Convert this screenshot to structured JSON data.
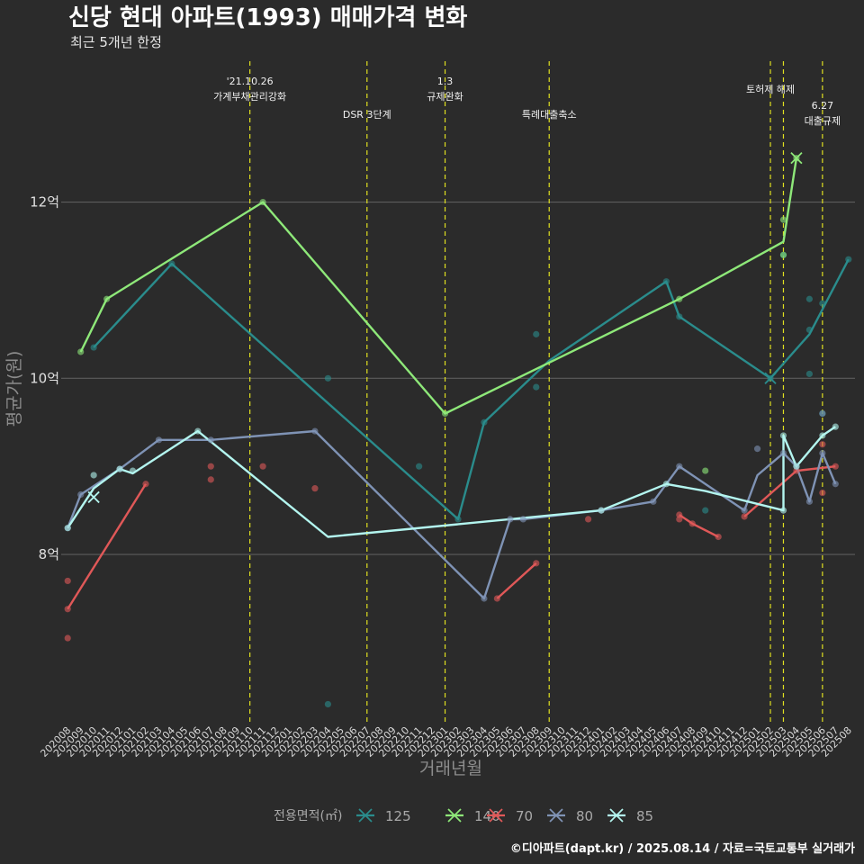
{
  "chart_data": {
    "type": "line",
    "title": "신당 현대 아파트(1993) 매매가격 변화",
    "subtitle": "최근 5개년 한정",
    "xlabel": "거래년월",
    "ylabel": "평균가(원)",
    "caption": "©디아파트(dapt.kr) / 2025.08.14 / 자료=국토교통부 실거래가",
    "legend_title": "전용면적(㎡)",
    "legend_position": "bottom",
    "grid": true,
    "ylim": [
      6.1,
      13.6
    ],
    "y_ticks": [
      {
        "value": 8,
        "label": "8억"
      },
      {
        "value": 10,
        "label": "10억"
      },
      {
        "value": 12,
        "label": "12억"
      }
    ],
    "x_range": [
      "202008",
      "202508"
    ],
    "x_ticks": [
      "202008",
      "202009",
      "202010",
      "202011",
      "202012",
      "202101",
      "202102",
      "202103",
      "202104",
      "202105",
      "202106",
      "202107",
      "202108",
      "202109",
      "202110",
      "202111",
      "202112",
      "202201",
      "202202",
      "202203",
      "202204",
      "202205",
      "202206",
      "202207",
      "202208",
      "202209",
      "202210",
      "202211",
      "202212",
      "202301",
      "202302",
      "202303",
      "202304",
      "202305",
      "202306",
      "202307",
      "202308",
      "202309",
      "202310",
      "202311",
      "202312",
      "202401",
      "202402",
      "202403",
      "202404",
      "202405",
      "202406",
      "202407",
      "202408",
      "202409",
      "202410",
      "202411",
      "202412",
      "202501",
      "202502",
      "202503",
      "202504",
      "202505",
      "202506",
      "202507",
      "202508"
    ],
    "events": [
      {
        "x": "202110",
        "lines": [
          "'21.10.26",
          "가계부채관리강화"
        ]
      },
      {
        "x": "202207",
        "lines": [
          "DSR 3단계"
        ]
      },
      {
        "x": "202301",
        "lines": [
          "1.3",
          "규제완화"
        ]
      },
      {
        "x": "202309",
        "lines": [
          "특례대출축소"
        ]
      },
      {
        "x": "202502",
        "lines": [
          "토허제 해제"
        ]
      },
      {
        "x": "202503",
        "lines": []
      },
      {
        "x": "202506",
        "lines": [
          "6.27",
          "대출규제"
        ]
      }
    ],
    "series": [
      {
        "name": "125",
        "color": "#2a8c8c",
        "line": [
          [
            "202010",
            10.35
          ],
          [
            "202104",
            11.3
          ],
          [
            "202302",
            8.4
          ],
          [
            "202304",
            9.5
          ],
          [
            "202309",
            10.2
          ],
          [
            "202406",
            11.1
          ],
          [
            "202407",
            10.7
          ],
          [
            "202502",
            10.0
          ],
          [
            "202505",
            10.5
          ],
          [
            "202508",
            11.35
          ]
        ],
        "points": [
          [
            "202010",
            10.35
          ],
          [
            "202104",
            11.3
          ],
          [
            "202204",
            10.0
          ],
          [
            "202204",
            6.3
          ],
          [
            "202211",
            9.0
          ],
          [
            "202302",
            8.4
          ],
          [
            "202304",
            9.5
          ],
          [
            "202308",
            10.5
          ],
          [
            "202308",
            9.9
          ],
          [
            "202406",
            11.1
          ],
          [
            "202407",
            10.7
          ],
          [
            "202409",
            8.5
          ],
          [
            "202502",
            10.0
          ],
          [
            "202503",
            11.4
          ],
          [
            "202505",
            10.9
          ],
          [
            "202505",
            10.05
          ],
          [
            "202505",
            10.55
          ],
          [
            "202506",
            10.85
          ],
          [
            "202506",
            9.6
          ],
          [
            "202508",
            11.35
          ]
        ],
        "markers": [
          [
            "202502",
            10.0
          ]
        ]
      },
      {
        "name": "140",
        "color": "#8ee879",
        "line": [
          [
            "202009",
            10.3
          ],
          [
            "202011",
            10.9
          ],
          [
            "202111",
            12.0
          ],
          [
            "202301",
            9.6
          ],
          [
            "202407",
            10.9
          ],
          [
            "202503",
            11.55
          ],
          [
            "202504",
            12.5
          ]
        ],
        "points": [
          [
            "202009",
            10.3
          ],
          [
            "202011",
            10.9
          ],
          [
            "202111",
            12.0
          ],
          [
            "202301",
            9.6
          ],
          [
            "202407",
            10.9
          ],
          [
            "202409",
            8.95
          ],
          [
            "202503",
            11.8
          ],
          [
            "202503",
            11.4
          ],
          [
            "202504",
            12.5
          ]
        ],
        "markers": [
          [
            "202504",
            12.5
          ]
        ]
      },
      {
        "name": "70",
        "color": "#e05858",
        "line": [
          [
            "202008",
            7.38
          ],
          [
            "202102",
            8.8
          ]
        ],
        "points": [
          [
            "202008",
            7.7
          ],
          [
            "202008",
            7.38
          ],
          [
            "202008",
            7.05
          ],
          [
            "202102",
            8.8
          ],
          [
            "202107",
            9.0
          ],
          [
            "202107",
            8.85
          ],
          [
            "202111",
            9.0
          ],
          [
            "202203",
            8.75
          ],
          [
            "202305",
            7.5
          ],
          [
            "202308",
            7.9
          ],
          [
            "202312",
            8.4
          ],
          [
            "202407",
            8.45
          ],
          [
            "202407",
            8.4
          ],
          [
            "202408",
            8.35
          ],
          [
            "202410",
            8.2
          ],
          [
            "202412",
            8.43
          ],
          [
            "202504",
            8.95
          ],
          [
            "202506",
            8.7
          ],
          [
            "202506",
            9.25
          ],
          [
            "202507",
            9.0
          ]
        ],
        "segments": [
          [
            [
              "202305",
              7.5
            ],
            [
              "202308",
              7.9
            ]
          ],
          [
            [
              "202407",
              8.45
            ],
            [
              "202408",
              8.35
            ],
            [
              "202410",
              8.2
            ]
          ],
          [
            [
              "202412",
              8.43
            ],
            [
              "202504",
              8.95
            ],
            [
              "202507",
              9.0
            ]
          ]
        ]
      },
      {
        "name": "80",
        "color": "#7f93b5",
        "line": [
          [
            "202008",
            8.3
          ],
          [
            "202009",
            8.68
          ],
          [
            "202012",
            8.97
          ],
          [
            "202103",
            9.3
          ],
          [
            "202107",
            9.3
          ],
          [
            "202203",
            9.4
          ],
          [
            "202304",
            7.5
          ],
          [
            "202306",
            8.4
          ],
          [
            "202307",
            8.4
          ],
          [
            "202401",
            8.5
          ],
          [
            "202405",
            8.6
          ],
          [
            "202407",
            9.0
          ],
          [
            "202412",
            8.5
          ],
          [
            "202501",
            8.9
          ],
          [
            "202503",
            9.15
          ],
          [
            "202504",
            9.0
          ],
          [
            "202505",
            8.6
          ],
          [
            "202506",
            9.15
          ],
          [
            "202507",
            8.8
          ]
        ],
        "points": [
          [
            "202008",
            8.3
          ],
          [
            "202009",
            8.68
          ],
          [
            "202012",
            8.97
          ],
          [
            "202103",
            9.3
          ],
          [
            "202107",
            9.3
          ],
          [
            "202203",
            9.4
          ],
          [
            "202304",
            7.5
          ],
          [
            "202306",
            8.4
          ],
          [
            "202307",
            8.4
          ],
          [
            "202401",
            8.5
          ],
          [
            "202405",
            8.6
          ],
          [
            "202407",
            9.0
          ],
          [
            "202412",
            8.5
          ],
          [
            "202501",
            9.2
          ],
          [
            "202503",
            9.15
          ],
          [
            "202504",
            9.0
          ],
          [
            "202505",
            8.6
          ],
          [
            "202506",
            9.15
          ],
          [
            "202506",
            9.6
          ],
          [
            "202507",
            8.8
          ]
        ],
        "markers": []
      },
      {
        "name": "85",
        "color": "#b3f5ef",
        "line": [
          [
            "202008",
            8.3
          ],
          [
            "202010",
            8.75
          ],
          [
            "202012",
            8.97
          ],
          [
            "202101",
            8.92
          ],
          [
            "202106",
            9.4
          ],
          [
            "202204",
            8.2
          ],
          [
            "202401",
            8.5
          ],
          [
            "202406",
            8.8
          ],
          [
            "202409",
            8.72
          ],
          [
            "202503",
            8.5
          ],
          [
            "202503",
            9.35
          ],
          [
            "202504",
            9.0
          ],
          [
            "202506",
            9.35
          ],
          [
            "202507",
            9.45
          ]
        ],
        "points": [
          [
            "202008",
            8.3
          ],
          [
            "202010",
            8.9
          ],
          [
            "202012",
            8.97
          ],
          [
            "202101",
            8.95
          ],
          [
            "202106",
            9.4
          ],
          [
            "202401",
            8.5
          ],
          [
            "202406",
            8.8
          ],
          [
            "202503",
            8.5
          ],
          [
            "202503",
            9.35
          ],
          [
            "202504",
            9.0
          ],
          [
            "202506",
            9.35
          ],
          [
            "202507",
            9.45
          ]
        ],
        "markers": [
          [
            "202010",
            8.65
          ]
        ]
      }
    ]
  }
}
